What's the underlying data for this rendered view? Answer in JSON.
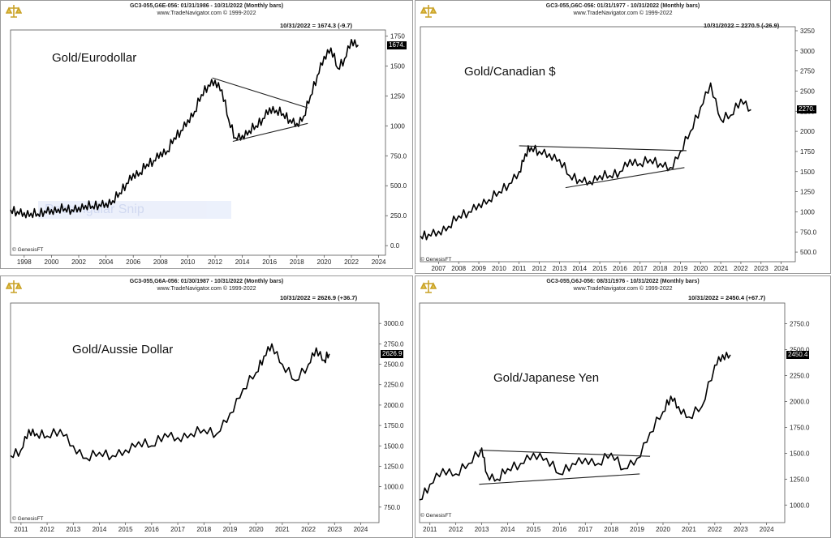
{
  "chart_data": [
    {
      "type": "line",
      "header_line1": "GC3-055,G6E-056:  01/31/1986 - 10/31/2022  (Monthly bars)",
      "header_line2": "www.TradeNavigator.com © 1999-2022",
      "readout": "10/31/2022 = 1674.3 (-9.7)",
      "title": "Gold/Eurodollar",
      "last_value_label": "1674.",
      "credit": "© GenesisFT",
      "x_ticks": [
        "1998",
        "2000",
        "2002",
        "2004",
        "2006",
        "2008",
        "2010",
        "2012",
        "2014",
        "2016",
        "2018",
        "2020",
        "2022",
        "2024"
      ],
      "y_ticks": [
        "1750",
        "1500",
        "1250",
        "1000",
        "750.0",
        "500.0",
        "250.0",
        "0.0"
      ],
      "xlim": [
        1997.0,
        2024.5
      ],
      "ylim": [
        -80,
        1800
      ],
      "x": [
        1997.0,
        1997.5,
        1998.0,
        1998.5,
        1999.0,
        1999.5,
        2000.0,
        2000.5,
        2001.0,
        2001.5,
        2002.0,
        2002.5,
        2003.0,
        2003.5,
        2004.0,
        2004.5,
        2005.0,
        2005.5,
        2006.0,
        2006.5,
        2007.0,
        2007.5,
        2008.0,
        2008.5,
        2009.0,
        2009.5,
        2010.0,
        2010.5,
        2011.0,
        2011.5,
        2012.0,
        2012.5,
        2013.0,
        2013.5,
        2014.0,
        2014.5,
        2015.0,
        2015.5,
        2016.0,
        2016.5,
        2017.0,
        2017.5,
        2018.0,
        2018.5,
        2019.0,
        2019.5,
        2020.0,
        2020.5,
        2021.0,
        2021.5,
        2022.0,
        2022.5
      ],
      "y": [
        300,
        285,
        275,
        270,
        265,
        290,
        300,
        305,
        310,
        300,
        320,
        335,
        330,
        345,
        355,
        375,
        440,
        520,
        600,
        610,
        680,
        710,
        780,
        790,
        900,
        960,
        1050,
        1120,
        1260,
        1340,
        1380,
        1300,
        1050,
        900,
        920,
        960,
        1000,
        1060,
        1150,
        1130,
        1100,
        1050,
        1020,
        1080,
        1250,
        1420,
        1580,
        1650,
        1480,
        1560,
        1720,
        1674
      ]
    },
    {
      "type": "line",
      "header_line1": "GC3-055,G6C-056:  01/31/1977 - 10/31/2022  (Monthly bars)",
      "header_line2": "www.TradeNavigator.com © 1999-2022",
      "readout": "10/31/2022 = 2270.5 (-26.9)",
      "title": "Gold/Canadian $",
      "last_value_label": "2270.",
      "credit": "© GenesisFT",
      "x_ticks": [
        "2007",
        "2008",
        "2009",
        "2010",
        "2011",
        "2012",
        "2013",
        "2014",
        "2015",
        "2016",
        "2017",
        "2018",
        "2019",
        "2020",
        "2021",
        "2022",
        "2023",
        "2024"
      ],
      "y_ticks": [
        "3250",
        "3000",
        "2750",
        "2500",
        "2250",
        "2000",
        "1750",
        "1500",
        "1250",
        "1000",
        "750.0",
        "500.0"
      ],
      "xlim": [
        2006.1,
        2024.7
      ],
      "ylim": [
        380,
        3300
      ],
      "x": [
        2006.1,
        2006.5,
        2007.0,
        2007.5,
        2008.0,
        2008.5,
        2009.0,
        2009.5,
        2010.0,
        2010.5,
        2011.0,
        2011.3,
        2011.6,
        2012.0,
        2012.5,
        2013.0,
        2013.5,
        2014.0,
        2014.5,
        2015.0,
        2015.5,
        2016.0,
        2016.5,
        2017.0,
        2017.5,
        2018.0,
        2018.5,
        2019.0,
        2019.5,
        2020.0,
        2020.5,
        2021.0,
        2021.5,
        2022.0,
        2022.5
      ],
      "y": [
        700,
        720,
        760,
        820,
        950,
        1000,
        1100,
        1150,
        1250,
        1350,
        1500,
        1720,
        1800,
        1750,
        1720,
        1650,
        1450,
        1400,
        1380,
        1450,
        1450,
        1500,
        1650,
        1600,
        1650,
        1600,
        1550,
        1750,
        2000,
        2300,
        2600,
        2150,
        2200,
        2400,
        2270
      ]
    },
    {
      "type": "line",
      "header_line1": "GC3-055,G6A-056:  01/30/1987 - 10/31/2022  (Monthly bars)",
      "header_line2": "www.TradeNavigator.com © 1999-2022",
      "readout": "10/31/2022 = 2626.9 (+36.7)",
      "title": "Gold/Aussie Dollar",
      "last_value_label": "2626.9",
      "credit": "© GenesisFT",
      "x_ticks": [
        "2011",
        "2012",
        "2013",
        "2014",
        "2015",
        "2016",
        "2017",
        "2018",
        "2019",
        "2020",
        "2021",
        "2022",
        "2023",
        "2024"
      ],
      "y_ticks": [
        "3000.0",
        "2750.0",
        "2500.0",
        "2250.0",
        "2000.0",
        "1750.0",
        "1500.0",
        "1250.0",
        "1000.0",
        "750.0"
      ],
      "xlim": [
        2010.6,
        2024.7
      ],
      "ylim": [
        560,
        3250
      ],
      "x": [
        2010.6,
        2011.0,
        2011.3,
        2011.6,
        2012.0,
        2012.5,
        2013.0,
        2013.5,
        2014.0,
        2014.5,
        2015.0,
        2015.5,
        2016.0,
        2016.5,
        2017.0,
        2017.5,
        2018.0,
        2018.5,
        2019.0,
        2019.5,
        2020.0,
        2020.3,
        2020.6,
        2021.0,
        2021.5,
        2022.0,
        2022.3,
        2022.6,
        2022.8
      ],
      "y": [
        1380,
        1450,
        1700,
        1650,
        1620,
        1700,
        1500,
        1350,
        1420,
        1380,
        1450,
        1550,
        1500,
        1650,
        1600,
        1650,
        1700,
        1650,
        1900,
        2200,
        2400,
        2600,
        2750,
        2500,
        2300,
        2500,
        2700,
        2550,
        2627
      ]
    },
    {
      "type": "line",
      "header_line1": "GC3-055,G6J-056:  08/31/1976 - 10/31/2022  (Monthly bars)",
      "header_line2": "www.TradeNavigator.com © 1999-2022",
      "readout": "10/31/2022 = 2450.4 (+67.7)",
      "title": "Gold/Japanese Yen",
      "last_value_label": "2450.4",
      "credit": "© GenesisFT",
      "x_ticks": [
        "2011",
        "2012",
        "2013",
        "2014",
        "2015",
        "2016",
        "2017",
        "2018",
        "2019",
        "2020",
        "2021",
        "2022",
        "2023",
        "2024"
      ],
      "y_ticks": [
        "2750.0",
        "2500.0",
        "2250.0",
        "2000.0",
        "1750.0",
        "1500.0",
        "1250.0",
        "1000.0"
      ],
      "xlim": [
        2010.6,
        2024.7
      ],
      "ylim": [
        830,
        2950
      ],
      "x": [
        2010.6,
        2011.0,
        2011.5,
        2012.0,
        2012.5,
        2013.0,
        2013.2,
        2013.6,
        2014.0,
        2014.5,
        2015.0,
        2015.5,
        2016.0,
        2016.5,
        2017.0,
        2017.5,
        2018.0,
        2018.5,
        2019.0,
        2019.5,
        2020.0,
        2020.3,
        2020.6,
        2021.0,
        2021.5,
        2022.0,
        2022.3,
        2022.6
      ],
      "y": [
        1050,
        1200,
        1350,
        1300,
        1400,
        1550,
        1300,
        1250,
        1350,
        1400,
        1500,
        1450,
        1300,
        1400,
        1450,
        1400,
        1500,
        1350,
        1450,
        1700,
        1900,
        2050,
        1950,
        1850,
        1950,
        2350,
        2450,
        2450
      ]
    }
  ]
}
